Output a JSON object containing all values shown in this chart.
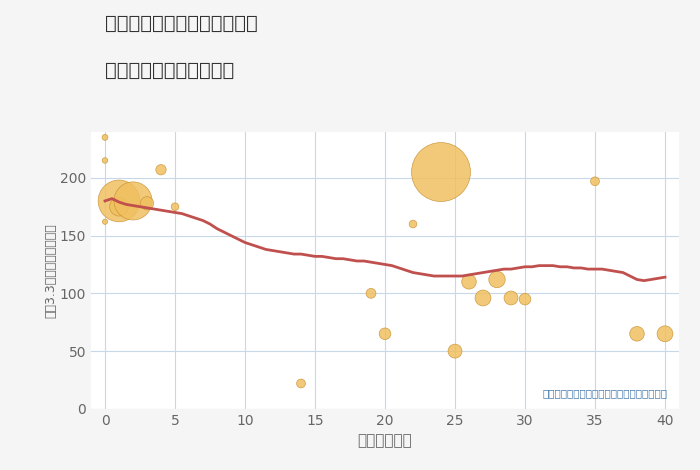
{
  "title_line1": "神奈川県川崎市幸区新小倉の",
  "title_line2": "築年数別中古戸建て価格",
  "xlabel": "築年数（年）",
  "ylabel": "坪（3.3㎡）単価（万円）",
  "annotation": "円の大きさは、取引のあった物件面積を示す",
  "bg_color": "#f5f5f5",
  "plot_bg_color": "#ffffff",
  "scatter_color": "#f0c060",
  "scatter_edge_color": "#c89030",
  "line_color": "#c0504d",
  "grid_color": "#c8d8e8",
  "title_color": "#333333",
  "label_color": "#666666",
  "annotation_color": "#4477aa",
  "xlim": [
    -1,
    41
  ],
  "ylim": [
    0,
    240
  ],
  "xticks": [
    0,
    5,
    10,
    15,
    20,
    25,
    30,
    35,
    40
  ],
  "yticks": [
    0,
    50,
    100,
    150,
    200
  ],
  "scatter_x": [
    0,
    0,
    0,
    1,
    1,
    2,
    3,
    4,
    5,
    14,
    19,
    20,
    22,
    24,
    25,
    26,
    27,
    28,
    29,
    30,
    35,
    38,
    40
  ],
  "scatter_y": [
    235,
    215,
    162,
    180,
    175,
    180,
    178,
    207,
    175,
    22,
    100,
    65,
    160,
    205,
    50,
    110,
    96,
    112,
    96,
    95,
    197,
    65,
    65
  ],
  "scatter_size": [
    18,
    16,
    14,
    900,
    180,
    750,
    90,
    55,
    30,
    40,
    50,
    70,
    30,
    1800,
    100,
    110,
    130,
    140,
    100,
    70,
    40,
    110,
    130
  ],
  "line_x": [
    0,
    0.5,
    1,
    1.5,
    2,
    2.5,
    3,
    3.5,
    4,
    4.5,
    5,
    5.5,
    6,
    6.5,
    7,
    7.5,
    8,
    8.5,
    9,
    9.5,
    10,
    10.5,
    11,
    11.5,
    12,
    12.5,
    13,
    13.5,
    14,
    14.5,
    15,
    15.5,
    16,
    16.5,
    17,
    17.5,
    18,
    18.5,
    19,
    19.5,
    20,
    20.5,
    21,
    21.5,
    22,
    22.5,
    23,
    23.5,
    24,
    24.5,
    25,
    25.5,
    26,
    26.5,
    27,
    27.5,
    28,
    28.5,
    29,
    29.5,
    30,
    30.5,
    31,
    31.5,
    32,
    32.5,
    33,
    33.5,
    34,
    34.5,
    35,
    35.5,
    36,
    36.5,
    37,
    37.5,
    38,
    38.5,
    39,
    39.5,
    40
  ],
  "line_y": [
    180,
    182,
    179,
    177,
    176,
    175,
    174,
    173,
    172,
    171,
    170,
    169,
    167,
    165,
    163,
    160,
    156,
    153,
    150,
    147,
    144,
    142,
    140,
    138,
    137,
    136,
    135,
    134,
    134,
    133,
    132,
    132,
    131,
    130,
    130,
    129,
    128,
    128,
    127,
    126,
    125,
    124,
    122,
    120,
    118,
    117,
    116,
    115,
    115,
    115,
    115,
    115,
    116,
    117,
    118,
    119,
    120,
    121,
    121,
    122,
    123,
    123,
    124,
    124,
    124,
    123,
    123,
    122,
    122,
    121,
    121,
    121,
    120,
    119,
    118,
    115,
    112,
    111,
    112,
    113,
    114
  ]
}
